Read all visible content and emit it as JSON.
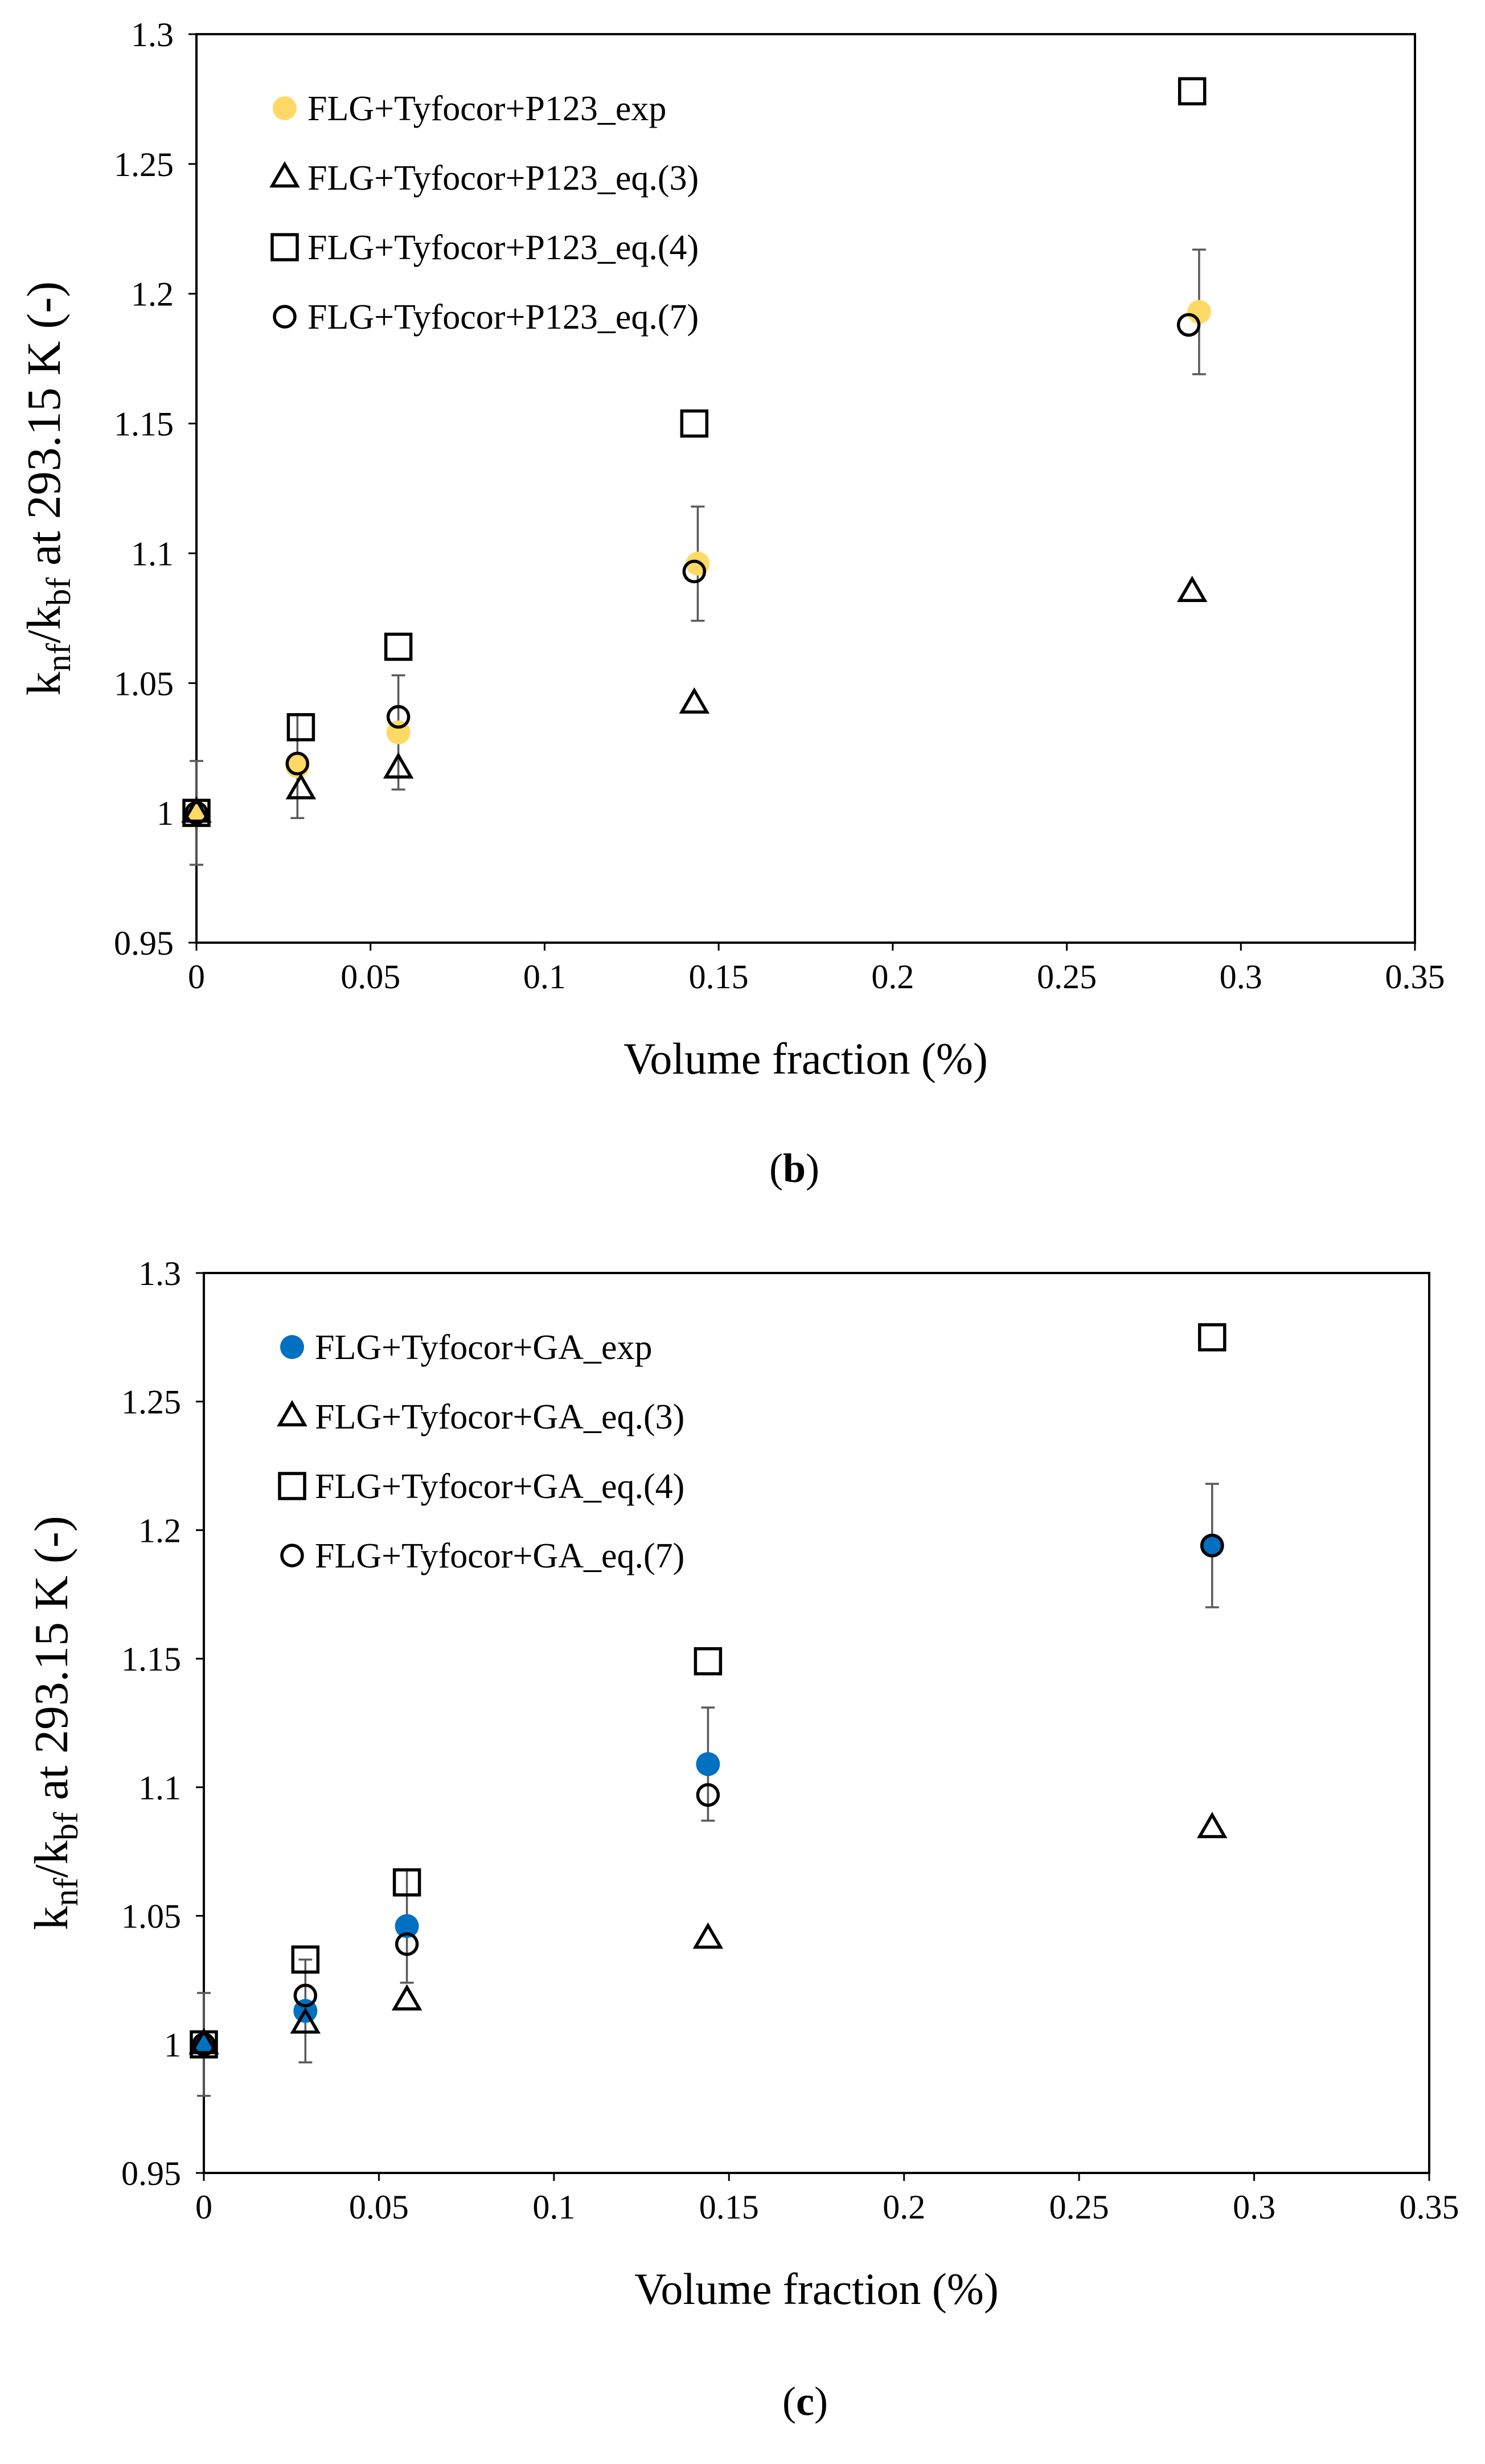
{
  "chart_data": [
    {
      "id": "b",
      "type": "scatter",
      "panel_label": "b",
      "xlabel": "Volume fraction (%)",
      "ylabel_parts": {
        "k1": "k",
        "s1": "nf",
        "slash": "/",
        "k2": "k",
        "s2": "bf",
        "rest": " at 293.15 K (-)"
      },
      "xlim": [
        0,
        0.35
      ],
      "ylim": [
        0.95,
        1.3
      ],
      "xticks": [
        0,
        0.05,
        0.1,
        0.15,
        0.2,
        0.25,
        0.3,
        0.35
      ],
      "yticks": [
        0.95,
        1,
        1.05,
        1.1,
        1.15,
        1.2,
        1.25,
        1.3
      ],
      "xtick_labels": [
        "0",
        "0.05",
        "0.1",
        "0.15",
        "0.2",
        "0.25",
        "0.3",
        "0.35"
      ],
      "ytick_labels": [
        "0.95",
        "1",
        "1.05",
        "1.1",
        "1.15",
        "1.2",
        "1.25",
        "1.3"
      ],
      "legend_position": "top-left",
      "series": [
        {
          "name": "FLG+Tyfocor+P123_exp",
          "marker": "filled-circle",
          "color": "#FFD966",
          "points": [
            {
              "x": 0,
              "y": 1.0,
              "err": 0.02
            },
            {
              "x": 0.029,
              "y": 1.018,
              "err": 0.02
            },
            {
              "x": 0.058,
              "y": 1.031,
              "err": 0.022
            },
            {
              "x": 0.144,
              "y": 1.096,
              "err": 0.022
            },
            {
              "x": 0.288,
              "y": 1.193,
              "err": 0.024
            }
          ]
        },
        {
          "name": "FLG+Tyfocor+P123_eq.(3)",
          "marker": "open-triangle",
          "color": "#000000",
          "points": [
            {
              "x": 0,
              "y": 1.0
            },
            {
              "x": 0.03,
              "y": 1.009
            },
            {
              "x": 0.058,
              "y": 1.017
            },
            {
              "x": 0.143,
              "y": 1.042
            },
            {
              "x": 0.286,
              "y": 1.085
            }
          ]
        },
        {
          "name": "FLG+Tyfocor+P123_eq.(4)",
          "marker": "open-square",
          "color": "#000000",
          "points": [
            {
              "x": 0,
              "y": 1.0
            },
            {
              "x": 0.03,
              "y": 1.033
            },
            {
              "x": 0.058,
              "y": 1.064
            },
            {
              "x": 0.143,
              "y": 1.15
            },
            {
              "x": 0.286,
              "y": 1.278
            }
          ]
        },
        {
          "name": "FLG+Tyfocor+P123_eq.(7)",
          "marker": "open-circle",
          "color": "#000000",
          "points": [
            {
              "x": 0,
              "y": 1.0
            },
            {
              "x": 0.029,
              "y": 1.019
            },
            {
              "x": 0.058,
              "y": 1.037
            },
            {
              "x": 0.143,
              "y": 1.093
            },
            {
              "x": 0.285,
              "y": 1.188
            }
          ]
        }
      ]
    },
    {
      "id": "c",
      "type": "scatter",
      "panel_label": "c",
      "xlabel": "Volume fraction (%)",
      "ylabel_parts": {
        "k1": "k",
        "s1": "nf",
        "slash": "/",
        "k2": "k",
        "s2": "bf",
        "rest": " at 293.15 K (-)"
      },
      "xlim": [
        0,
        0.35
      ],
      "ylim": [
        0.95,
        1.3
      ],
      "xticks": [
        0,
        0.05,
        0.1,
        0.15,
        0.2,
        0.25,
        0.3,
        0.35
      ],
      "yticks": [
        0.95,
        1,
        1.05,
        1.1,
        1.15,
        1.2,
        1.25,
        1.3
      ],
      "xtick_labels": [
        "0",
        "0.05",
        "0.1",
        "0.15",
        "0.2",
        "0.25",
        "0.3",
        "0.35"
      ],
      "ytick_labels": [
        "0.95",
        "1",
        "1.05",
        "1.1",
        "1.15",
        "1.2",
        "1.25",
        "1.3"
      ],
      "legend_position": "top-left",
      "series": [
        {
          "name": "FLG+Tyfocor+GA_exp",
          "marker": "filled-circle",
          "color": "#0070C0",
          "points": [
            {
              "x": 0,
              "y": 1.0,
              "err": 0.02
            },
            {
              "x": 0.029,
              "y": 1.013,
              "err": 0.02
            },
            {
              "x": 0.058,
              "y": 1.046,
              "err": 0.022
            },
            {
              "x": 0.144,
              "y": 1.109,
              "err": 0.022
            },
            {
              "x": 0.288,
              "y": 1.194,
              "err": 0.024
            }
          ]
        },
        {
          "name": "FLG+Tyfocor+GA_eq.(3)",
          "marker": "open-triangle",
          "color": "#000000",
          "points": [
            {
              "x": 0,
              "y": 1.0
            },
            {
              "x": 0.029,
              "y": 1.008
            },
            {
              "x": 0.058,
              "y": 1.017
            },
            {
              "x": 0.144,
              "y": 1.041
            },
            {
              "x": 0.288,
              "y": 1.084
            }
          ]
        },
        {
          "name": "FLG+Tyfocor+GA_eq.(4)",
          "marker": "open-square",
          "color": "#000000",
          "points": [
            {
              "x": 0,
              "y": 1.0
            },
            {
              "x": 0.029,
              "y": 1.033
            },
            {
              "x": 0.058,
              "y": 1.063
            },
            {
              "x": 0.144,
              "y": 1.149
            },
            {
              "x": 0.288,
              "y": 1.275
            }
          ]
        },
        {
          "name": "FLG+Tyfocor+GA_eq.(7)",
          "marker": "open-circle",
          "color": "#000000",
          "points": [
            {
              "x": 0,
              "y": 1.0
            },
            {
              "x": 0.029,
              "y": 1.019
            },
            {
              "x": 0.058,
              "y": 1.039
            },
            {
              "x": 0.144,
              "y": 1.097
            },
            {
              "x": 0.288,
              "y": 1.194
            }
          ]
        }
      ]
    }
  ]
}
